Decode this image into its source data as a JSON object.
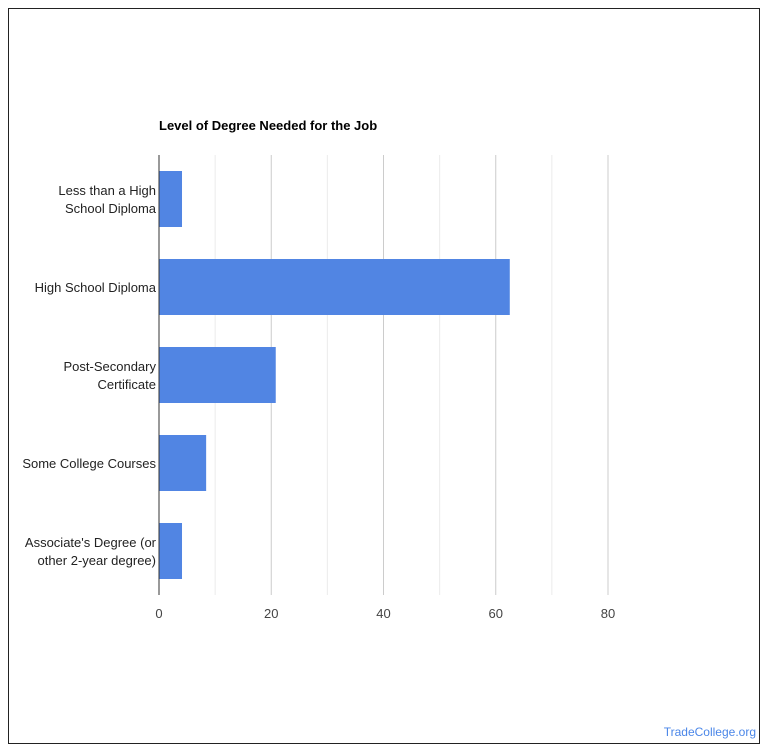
{
  "chart_data": {
    "type": "bar",
    "orientation": "horizontal",
    "title": "Level of Degree Needed for the Job",
    "categories": [
      [
        "Less than a High",
        "School Diploma"
      ],
      [
        "High School Diploma"
      ],
      [
        "Post-Secondary",
        "Certificate"
      ],
      [
        "Some College Courses"
      ],
      [
        "Associate's Degree (or",
        "other 2-year degree)"
      ]
    ],
    "values": [
      4.1,
      62.5,
      20.8,
      8.4,
      4.1
    ],
    "xlim": [
      0,
      80
    ],
    "xticks": [
      0,
      20,
      40,
      60,
      80
    ],
    "minor_gridlines": [
      10,
      30,
      50,
      70
    ],
    "xlabel": "",
    "ylabel": "",
    "grid": true,
    "bar_color": "#5185e3"
  },
  "watermark": "TradeCollege.org"
}
